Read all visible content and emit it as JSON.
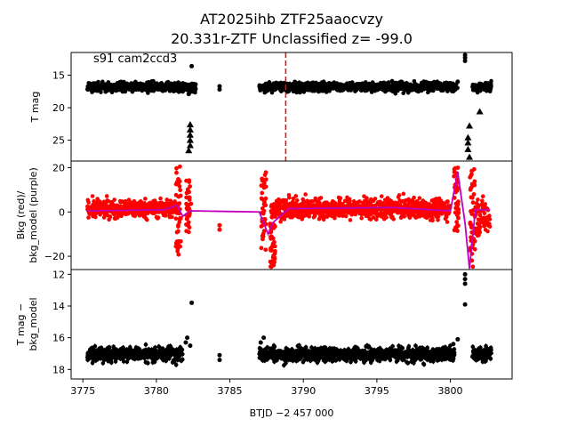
{
  "title_line1": "AT2025ihb  ZTF25aaocvzy",
  "title_line2": "20.331r-ZTF Unclassified z= -99.0",
  "annotation": "s91 cam2ccd3",
  "colors": {
    "points": "#000000",
    "bkg": "#ff0000",
    "model": "#bf00bf",
    "marker_line": "#ff0000"
  },
  "chart_data": [
    {
      "type": "scatter",
      "panel": "top",
      "ylabel": "T mag",
      "xlim": [
        3774.2,
        3804.2
      ],
      "ylim": [
        28.2,
        11.5
      ],
      "inverted_y": true,
      "yticks": [
        15,
        20,
        25
      ],
      "vline_x": 3788.8,
      "segments": [
        {
          "x_start": 3775.3,
          "x_end": 3782.7,
          "y_center": 16.8,
          "spread": 0.7
        },
        {
          "x_start": 3787.0,
          "x_end": 3800.5,
          "y_center": 16.8,
          "spread": 0.7
        },
        {
          "x_start": 3801.5,
          "x_end": 3802.8,
          "y_center": 16.8,
          "spread": 0.7
        }
      ],
      "outliers": [
        {
          "x": 3782.4,
          "y": 13.6
        },
        {
          "x": 3784.3,
          "y": 17.2
        },
        {
          "x": 3784.3,
          "y": 16.7
        },
        {
          "x": 3801.0,
          "y": 12.3
        },
        {
          "x": 3801.0,
          "y": 11.9
        },
        {
          "x": 3801.0,
          "y": 12.8
        },
        {
          "x": 3800.5,
          "y": 16.0
        },
        {
          "x": 3782.2,
          "y": 17.9
        }
      ],
      "triangles": [
        {
          "x": 3782.3,
          "y": 22.6
        },
        {
          "x": 3782.3,
          "y": 23.4
        },
        {
          "x": 3782.3,
          "y": 24.2
        },
        {
          "x": 3782.3,
          "y": 25.0
        },
        {
          "x": 3782.3,
          "y": 25.8
        },
        {
          "x": 3782.2,
          "y": 26.6
        },
        {
          "x": 3801.3,
          "y": 22.8
        },
        {
          "x": 3801.2,
          "y": 24.6
        },
        {
          "x": 3801.2,
          "y": 25.4
        },
        {
          "x": 3801.2,
          "y": 26.4
        },
        {
          "x": 3801.3,
          "y": 27.6
        },
        {
          "x": 3802.0,
          "y": 20.6
        }
      ]
    },
    {
      "type": "scatter",
      "panel": "middle",
      "ylabel": "Bkg (red)/\nbkg_model (purple)",
      "xlim": [
        3774.2,
        3804.2
      ],
      "ylim": [
        -26,
        23
      ],
      "yticks": [
        -20,
        0,
        20
      ],
      "segments": [
        {
          "x_start": 3775.3,
          "x_end": 3781.5,
          "y_center": 1.5,
          "spread": 4.0
        },
        {
          "x_start": 3787.8,
          "x_end": 3800.0,
          "y_center": 1.5,
          "spread": 4.5
        },
        {
          "x_start": 3801.7,
          "x_end": 3802.7,
          "y_center": -2.0,
          "spread": 8.0
        }
      ],
      "spikes": [
        {
          "x": 3781.5,
          "y_min": -22,
          "y_max": 21
        },
        {
          "x": 3782.2,
          "y_min": -10,
          "y_max": 15
        },
        {
          "x": 3787.3,
          "y_min": -18,
          "y_max": 18
        },
        {
          "x": 3787.9,
          "y_min": -25,
          "y_max": -5
        },
        {
          "x": 3800.4,
          "y_min": -10,
          "y_max": 20
        },
        {
          "x": 3801.5,
          "y_min": -25,
          "y_max": 21
        }
      ],
      "isolated": [
        {
          "x": 3784.3,
          "y": -6
        },
        {
          "x": 3784.3,
          "y": -8
        }
      ],
      "model_line": [
        {
          "x": 3775.3,
          "y": 0.5
        },
        {
          "x": 3780.5,
          "y": 1.0
        },
        {
          "x": 3781.4,
          "y": 3.0
        },
        {
          "x": 3781.8,
          "y": -2.0
        },
        {
          "x": 3782.3,
          "y": 0.5
        },
        {
          "x": 3787.0,
          "y": 0.0
        },
        {
          "x": 3787.6,
          "y": -10.0
        },
        {
          "x": 3787.9,
          "y": -5.0
        },
        {
          "x": 3789.0,
          "y": 1.5
        },
        {
          "x": 3796.0,
          "y": 2.0
        },
        {
          "x": 3800.0,
          "y": 0.5
        },
        {
          "x": 3800.5,
          "y": 18.0
        },
        {
          "x": 3801.0,
          "y": -5.0
        },
        {
          "x": 3801.3,
          "y": -28.0
        },
        {
          "x": 3801.7,
          "y": 1.0
        },
        {
          "x": 3802.7,
          "y": 1.0
        }
      ]
    },
    {
      "type": "scatter",
      "panel": "bottom",
      "ylabel": "T mag −\nbkg_model",
      "xlabel": "BTJD −2 457 000",
      "xlim": [
        3774.2,
        3804.2
      ],
      "ylim": [
        18.6,
        11.7
      ],
      "inverted_y": true,
      "yticks": [
        12,
        14,
        16,
        18
      ],
      "xticks": [
        3775,
        3780,
        3785,
        3790,
        3795,
        3800
      ],
      "segments": [
        {
          "x_start": 3775.3,
          "x_end": 3781.8,
          "y_center": 17.05,
          "spread": 0.45
        },
        {
          "x_start": 3787.0,
          "x_end": 3800.3,
          "y_center": 17.05,
          "spread": 0.45
        },
        {
          "x_start": 3801.5,
          "x_end": 3802.8,
          "y_center": 17.05,
          "spread": 0.45
        }
      ],
      "outliers": [
        {
          "x": 3782.4,
          "y": 13.8
        },
        {
          "x": 3782.1,
          "y": 16.0
        },
        {
          "x": 3782.0,
          "y": 16.3
        },
        {
          "x": 3782.3,
          "y": 16.5
        },
        {
          "x": 3784.3,
          "y": 17.1
        },
        {
          "x": 3784.3,
          "y": 17.4
        },
        {
          "x": 3787.1,
          "y": 16.3
        },
        {
          "x": 3787.3,
          "y": 16.0
        },
        {
          "x": 3801.0,
          "y": 12.0
        },
        {
          "x": 3801.0,
          "y": 12.3
        },
        {
          "x": 3801.0,
          "y": 12.6
        },
        {
          "x": 3801.0,
          "y": 13.9
        },
        {
          "x": 3800.5,
          "y": 16.1
        },
        {
          "x": 3800.2,
          "y": 16.4
        }
      ]
    }
  ]
}
